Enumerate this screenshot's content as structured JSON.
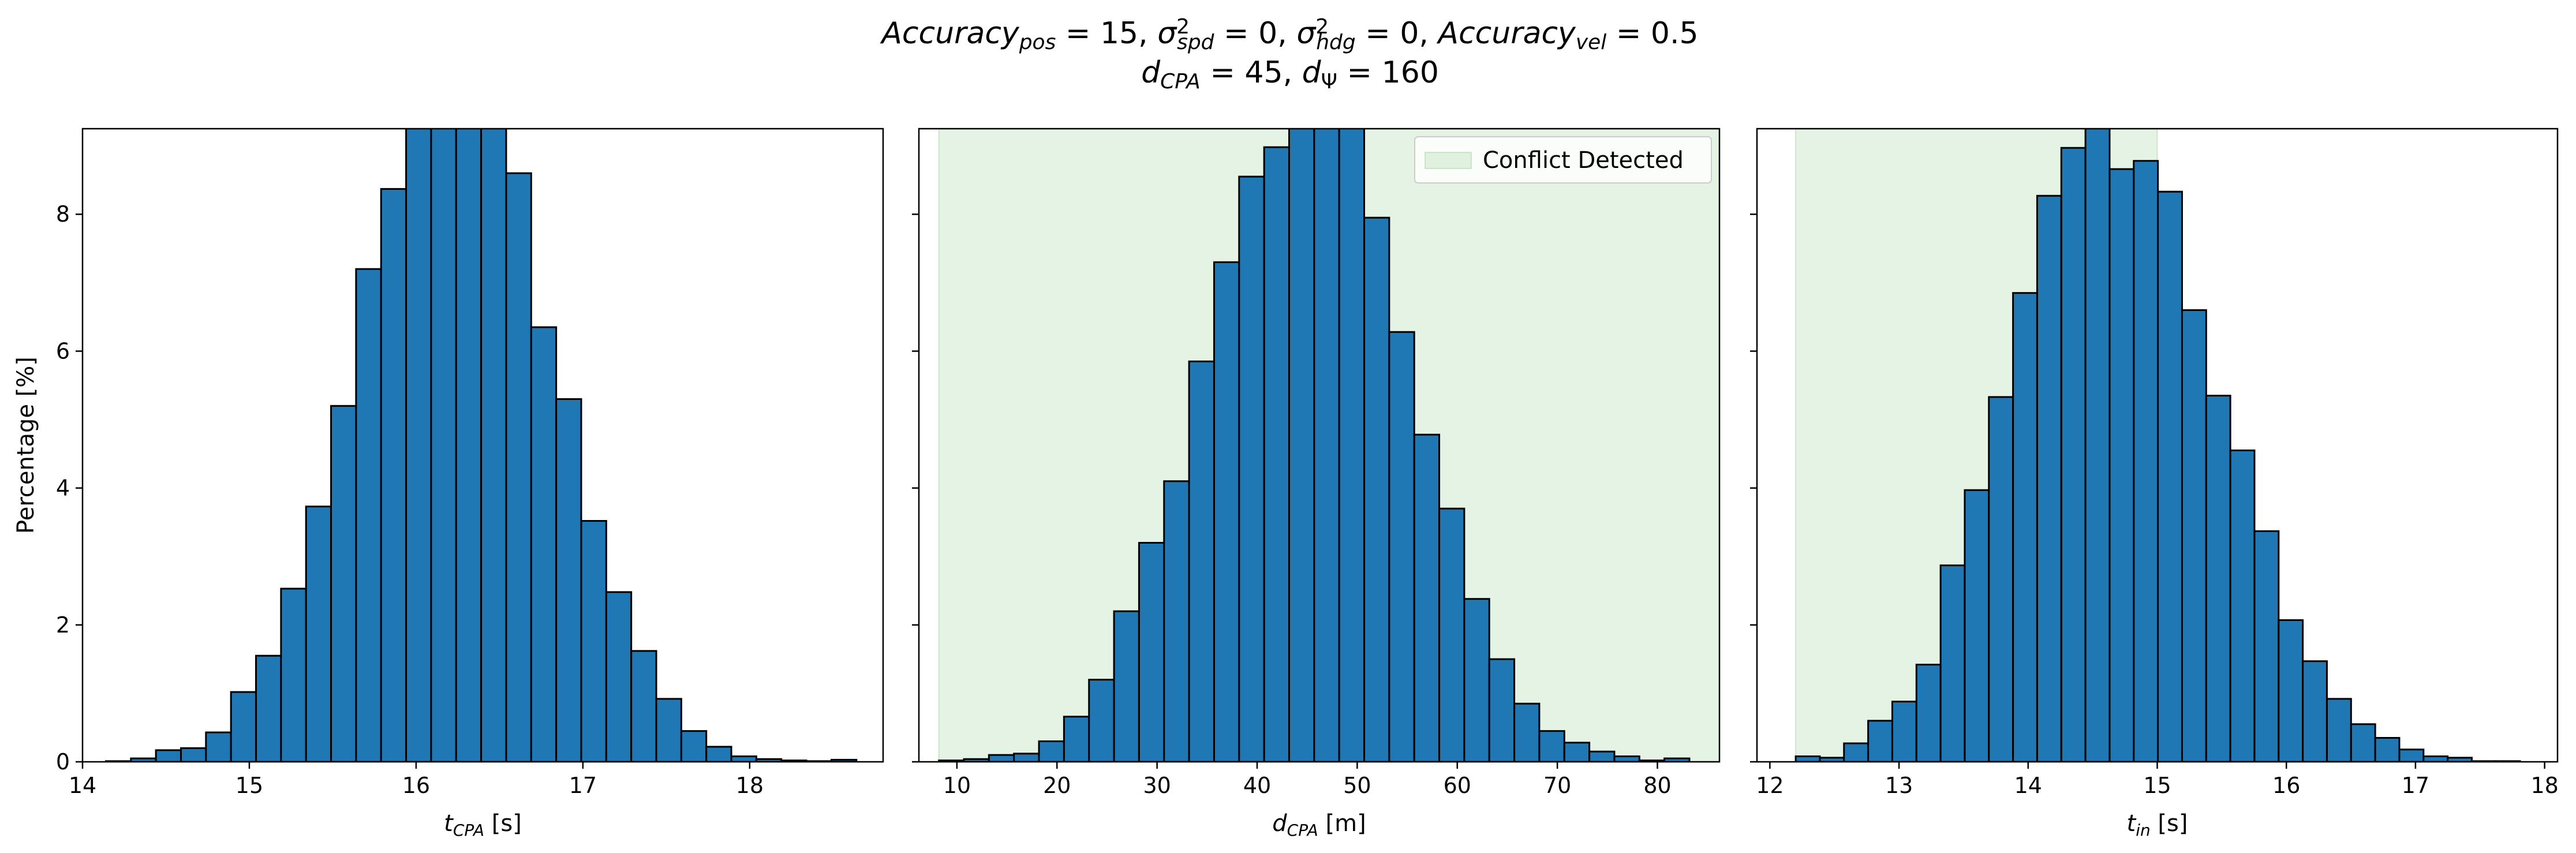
{
  "figure": {
    "title_line1": {
      "parts": [
        {
          "t": "Accuracy",
          "i": true
        },
        {
          "t": "pos",
          "i": true,
          "sub": true
        },
        {
          "t": " = 15, "
        },
        {
          "t": "σ",
          "i": true
        },
        {
          "t": "2",
          "sup": true
        },
        {
          "t": "spd",
          "i": true,
          "sub": true
        },
        {
          "t": " = 0, "
        },
        {
          "t": "σ",
          "i": true
        },
        {
          "t": "2",
          "sup": true
        },
        {
          "t": "hdg",
          "i": true,
          "sub": true
        },
        {
          "t": " = 0, "
        },
        {
          "t": "Accuracy",
          "i": true
        },
        {
          "t": "vel",
          "i": true,
          "sub": true
        },
        {
          "t": " = 0.5"
        }
      ]
    },
    "title_line2": {
      "parts": [
        {
          "t": "d",
          "i": true
        },
        {
          "t": "CPA",
          "i": true,
          "sub": true
        },
        {
          "t": " = 45, "
        },
        {
          "t": "d",
          "i": true
        },
        {
          "t": "Ψ",
          "sub": true
        },
        {
          "t": " = 160"
        }
      ]
    }
  },
  "colors": {
    "bar_fill": "#1f77b4",
    "bar_edge": "#000000",
    "shade_fill": "#2ca02c",
    "shade_opacity": 0.12
  },
  "chart_data": [
    {
      "type": "bar",
      "subtype": "histogram",
      "xlabel": {
        "parts": [
          {
            "t": "t",
            "i": true
          },
          {
            "t": "CPA",
            "i": true,
            "sub": true
          },
          {
            "t": " [s]"
          }
        ]
      },
      "ylabel": "Percentage [%]",
      "xlim": [
        14.0,
        18.8
      ],
      "ylim": [
        0,
        9.25
      ],
      "xticks": [
        14,
        15,
        16,
        17,
        18
      ],
      "yticks": [
        0,
        2,
        4,
        6,
        8
      ],
      "bins": {
        "start": 14.14,
        "width": 0.15
      },
      "values": [
        0.01,
        0.05,
        0.17,
        0.2,
        0.43,
        1.02,
        1.55,
        2.53,
        3.73,
        5.2,
        7.2,
        8.37,
        9.6,
        10.2,
        10.5,
        10.1,
        8.6,
        6.35,
        5.3,
        3.52,
        2.48,
        1.62,
        0.92,
        0.45,
        0.22,
        0.08,
        0.04,
        0.02,
        0.01,
        0.03
      ]
    },
    {
      "type": "bar",
      "subtype": "histogram",
      "xlabel": {
        "parts": [
          {
            "t": "d",
            "i": true
          },
          {
            "t": "CPA",
            "i": true,
            "sub": true
          },
          {
            "t": " [m]"
          }
        ]
      },
      "ylabel": "",
      "xlim": [
        6.2,
        86.2
      ],
      "ylim": [
        0,
        9.25
      ],
      "xticks": [
        10,
        20,
        30,
        40,
        50,
        60,
        70,
        80
      ],
      "yticks": [
        0,
        2,
        4,
        6,
        8
      ],
      "show_ytick_labels": false,
      "shaded_region": {
        "x0": 8.2,
        "x1": 86.2
      },
      "legend": {
        "label": "Conflict Detected",
        "loc": "upper right"
      },
      "bins": {
        "start": 8.2,
        "width": 2.5
      },
      "values": [
        0.02,
        0.04,
        0.1,
        0.12,
        0.3,
        0.66,
        1.2,
        2.2,
        3.2,
        4.1,
        5.85,
        7.3,
        8.55,
        8.98,
        9.3,
        9.9,
        9.35,
        7.95,
        6.28,
        4.78,
        3.7,
        2.38,
        1.5,
        0.85,
        0.45,
        0.28,
        0.15,
        0.08,
        0.02,
        0.05
      ]
    },
    {
      "type": "bar",
      "subtype": "histogram",
      "xlabel": {
        "parts": [
          {
            "t": "t",
            "i": true
          },
          {
            "t": "in",
            "i": true,
            "sub": true
          },
          {
            "t": " [s]"
          }
        ]
      },
      "ylabel": "",
      "xlim": [
        11.9,
        18.1
      ],
      "ylim": [
        0,
        9.25
      ],
      "xticks": [
        12,
        13,
        14,
        15,
        16,
        17,
        18
      ],
      "yticks": [
        0,
        2,
        4,
        6,
        8
      ],
      "show_ytick_labels": false,
      "shaded_region": {
        "x0": 12.2,
        "x1": 15.0
      },
      "bins": {
        "start": 12.2,
        "width": 0.187
      },
      "values": [
        0.08,
        0.06,
        0.27,
        0.6,
        0.88,
        1.42,
        2.87,
        3.97,
        5.33,
        6.85,
        8.27,
        8.97,
        9.27,
        8.66,
        8.78,
        8.33,
        6.6,
        5.35,
        4.55,
        3.37,
        2.07,
        1.47,
        0.92,
        0.55,
        0.35,
        0.18,
        0.08,
        0.06,
        0.01,
        0.01
      ]
    }
  ]
}
